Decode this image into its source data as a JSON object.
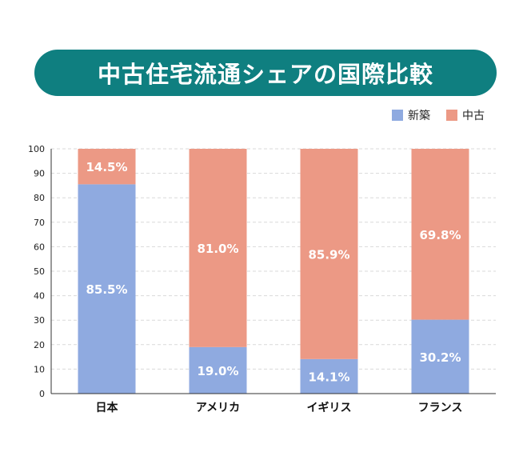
{
  "chart_data": {
    "type": "bar",
    "stacked": true,
    "title": "中古住宅流通シェアの国際比較",
    "categories": [
      "日本",
      "アメリカ",
      "イギリス",
      "フランス"
    ],
    "series": [
      {
        "name": "新築",
        "values": [
          85.5,
          19.0,
          14.1,
          30.2
        ],
        "labels": [
          "85.5%",
          "19.0%",
          "14.1%",
          "30.2%"
        ],
        "color": "#8faae0"
      },
      {
        "name": "中古",
        "values": [
          14.5,
          81.0,
          85.9,
          69.8
        ],
        "labels": [
          "14.5%",
          "81.0%",
          "85.9%",
          "69.8%"
        ],
        "color": "#ec9985"
      }
    ],
    "ylim": [
      0,
      100
    ],
    "yticks": [
      "0",
      "10",
      "20",
      "30",
      "40",
      "50",
      "60",
      "70",
      "80",
      "90",
      "100"
    ],
    "grid": true,
    "legend_position": "top-right"
  },
  "colors": {
    "title_bg": "#0f7f80"
  }
}
